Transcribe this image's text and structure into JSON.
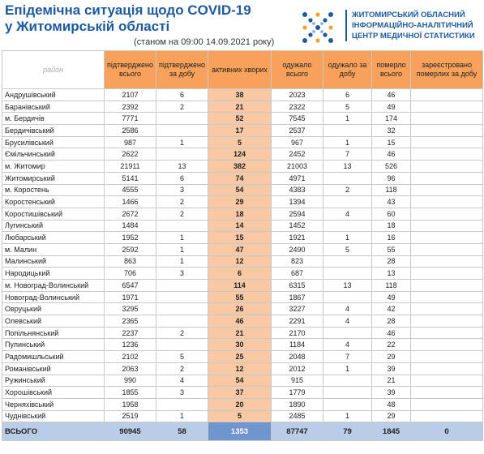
{
  "title_line1": "Епідемічна ситуація щодо COVID-19",
  "title_line2": "у Житомирській області",
  "subtitle": "(станом на 09:00 14.09.2021 року)",
  "org": {
    "line1": "ЖИТОМИРСЬКИЙ ОБЛАСНИЙ",
    "line2": "ІНФОРМАЦІЙНО-АНАЛІТИЧНИЙ",
    "line3": "ЦЕНТР МЕДИЧНОЇ СТАТИСТИКИ"
  },
  "logo_icon": "org-logo-icon",
  "colors": {
    "accent": "#1e5a9e",
    "header": "#f7a15a",
    "active": "#f9c9a6",
    "total": "#b9cde6",
    "total_active": "#6f95cf"
  },
  "headers": {
    "district": "район",
    "confirmed": "підтверджено всього",
    "confirmed_day": "підтверджено за добу",
    "active": "активних хворих",
    "recovered": "одужало всього",
    "recovered_day": "одужало за добу",
    "died": "померло всього",
    "died_day": "зареєстровано померлих за добу"
  },
  "rows": [
    [
      "Андрушівський",
      "2107",
      "6",
      "38",
      "2023",
      "6",
      "46",
      ""
    ],
    [
      "Баранівський",
      "2392",
      "2",
      "21",
      "2322",
      "5",
      "49",
      ""
    ],
    [
      "м. Бердичів",
      "7771",
      "",
      "52",
      "7545",
      "1",
      "174",
      ""
    ],
    [
      "Бердичівський",
      "2586",
      "",
      "17",
      "2537",
      "",
      "32",
      ""
    ],
    [
      "Брусилівський",
      "987",
      "1",
      "5",
      "967",
      "1",
      "15",
      ""
    ],
    [
      "Ємільчинський",
      "2622",
      "",
      "124",
      "2452",
      "7",
      "46",
      ""
    ],
    [
      "м. Житомир",
      "21911",
      "13",
      "382",
      "21003",
      "13",
      "526",
      ""
    ],
    [
      "Житомирський",
      "5141",
      "6",
      "74",
      "4971",
      "",
      "96",
      ""
    ],
    [
      "м. Коростень",
      "4555",
      "3",
      "54",
      "4383",
      "2",
      "118",
      ""
    ],
    [
      "Коростенський",
      "1466",
      "2",
      "29",
      "1394",
      "",
      "43",
      ""
    ],
    [
      "Коростишівський",
      "2672",
      "2",
      "18",
      "2594",
      "4",
      "60",
      ""
    ],
    [
      "Лугинський",
      "1484",
      "",
      "14",
      "1452",
      "",
      "18",
      ""
    ],
    [
      "Любарський",
      "1952",
      "1",
      "15",
      "1921",
      "1",
      "16",
      ""
    ],
    [
      "м. Малин",
      "2592",
      "1",
      "47",
      "2490",
      "5",
      "55",
      ""
    ],
    [
      "Малинський",
      "863",
      "1",
      "12",
      "823",
      "",
      "28",
      ""
    ],
    [
      "Народицький",
      "706",
      "3",
      "6",
      "687",
      "",
      "13",
      ""
    ],
    [
      "м. Новоград-Волинський",
      "6547",
      "",
      "114",
      "6315",
      "13",
      "118",
      ""
    ],
    [
      "Новоград-Волинський",
      "1971",
      "",
      "55",
      "1867",
      "",
      "49",
      ""
    ],
    [
      "Овруцький",
      "3295",
      "",
      "26",
      "3227",
      "4",
      "42",
      ""
    ],
    [
      "Олевський",
      "2365",
      "",
      "46",
      "2291",
      "4",
      "28",
      ""
    ],
    [
      "Попільнянський",
      "2237",
      "2",
      "21",
      "2170",
      "",
      "46",
      ""
    ],
    [
      "Пулинський",
      "1236",
      "",
      "30",
      "1184",
      "4",
      "22",
      ""
    ],
    [
      "Радомишльський",
      "2102",
      "5",
      "25",
      "2048",
      "7",
      "29",
      ""
    ],
    [
      "Романівський",
      "2063",
      "2",
      "12",
      "2012",
      "1",
      "39",
      ""
    ],
    [
      "Ружинський",
      "990",
      "4",
      "54",
      "915",
      "",
      "21",
      ""
    ],
    [
      "Хорошівський",
      "1855",
      "3",
      "37",
      "1779",
      "",
      "39",
      ""
    ],
    [
      "Черняхівський",
      "1958",
      "",
      "20",
      "1890",
      "",
      "48",
      ""
    ],
    [
      "Чуднівський",
      "2519",
      "1",
      "5",
      "2485",
      "1",
      "29",
      ""
    ]
  ],
  "total": [
    "ВСЬОГО",
    "90945",
    "58",
    "1353",
    "87747",
    "79",
    "1845",
    "0"
  ]
}
